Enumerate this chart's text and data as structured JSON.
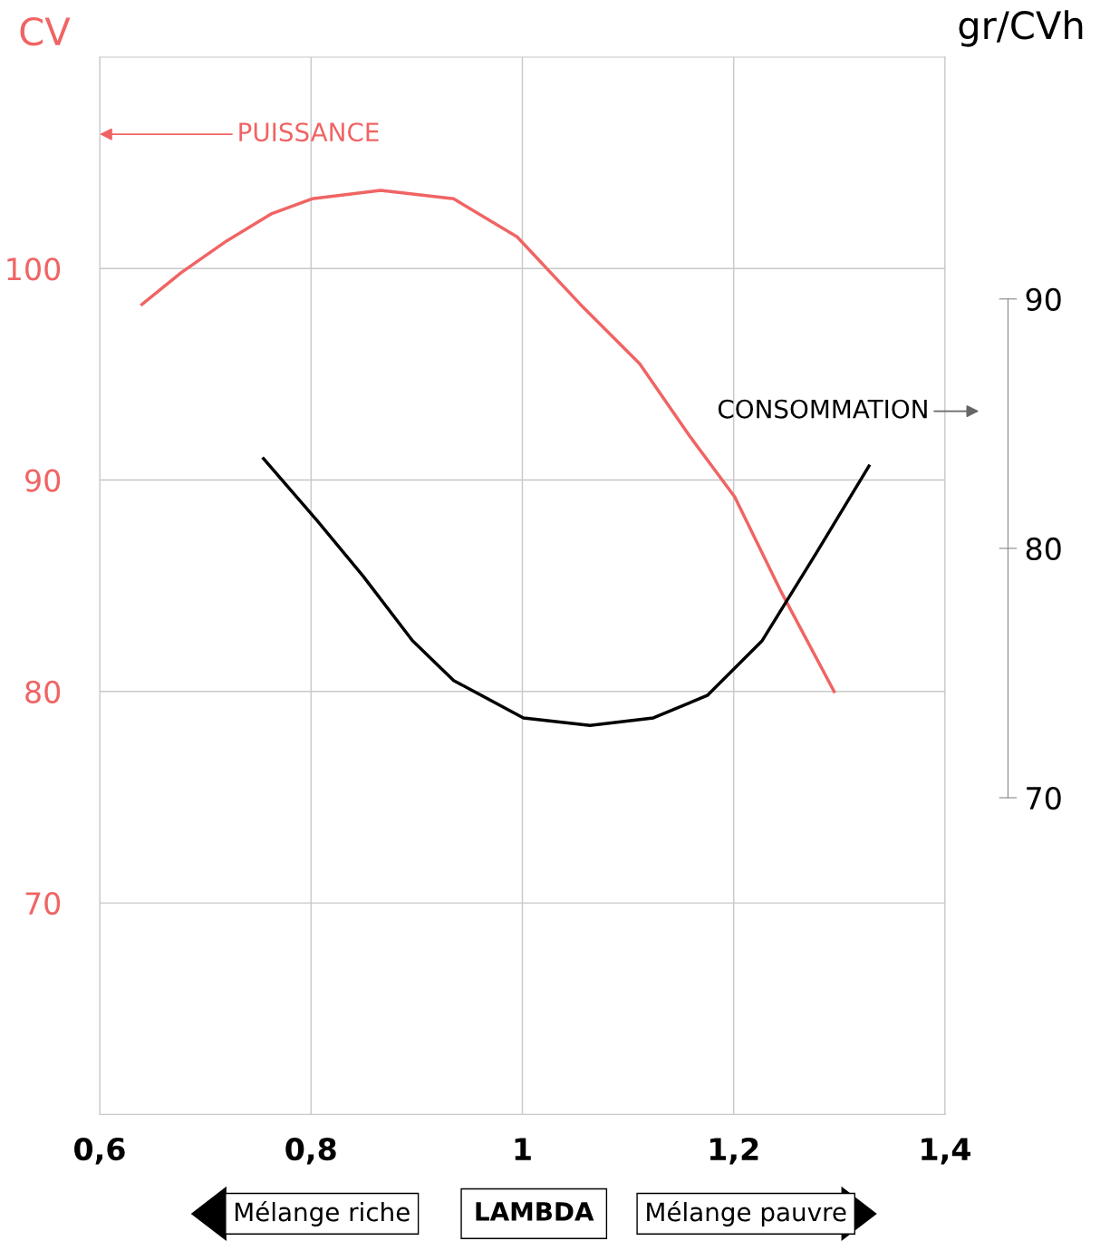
{
  "chart_data": {
    "type": "line",
    "xlabel": "LAMBDA",
    "ylabel": "CV",
    "y2label": "gr/CVh",
    "xlim": [
      0.6,
      1.4
    ],
    "xticks": [
      {
        "value": 0.6,
        "label": "0,6"
      },
      {
        "value": 0.8,
        "label": "0,8"
      },
      1,
      {
        "value": 1.2,
        "label": "1,2"
      },
      {
        "value": 1.4,
        "label": "1,4"
      }
    ],
    "ylim": [
      60,
      110
    ],
    "yticks": [
      70,
      80,
      90,
      100
    ],
    "y2lim": [
      57.3,
      99.7
    ],
    "y2ticks": [
      70,
      80,
      90
    ],
    "grid": true,
    "series": [
      {
        "name": "PUISSANCE",
        "color": "#f06464",
        "axis": "y",
        "x": [
          0.64,
          0.677,
          0.72,
          0.763,
          0.801,
          0.866,
          0.935,
          0.995,
          1.055,
          1.111,
          1.158,
          1.201,
          1.244,
          1.295
        ],
        "values": [
          98.3,
          99.8,
          101.3,
          102.6,
          103.3,
          103.7,
          103.3,
          101.5,
          98.3,
          95.5,
          92.1,
          89.2,
          84.8,
          80.0
        ]
      },
      {
        "name": "CONSOMMATION",
        "color": "#000000",
        "axis": "y2",
        "x": [
          0.755,
          0.806,
          0.849,
          0.896,
          0.935,
          1.001,
          1.064,
          1.124,
          1.175,
          1.227,
          1.278,
          1.328
        ],
        "values": [
          83.6,
          81.1,
          78.9,
          76.3,
          74.7,
          73.2,
          72.9,
          73.2,
          74.1,
          76.3,
          79.8,
          83.3
        ]
      }
    ],
    "annotations": [
      "Mélange riche",
      "Mélange pauvre"
    ]
  }
}
